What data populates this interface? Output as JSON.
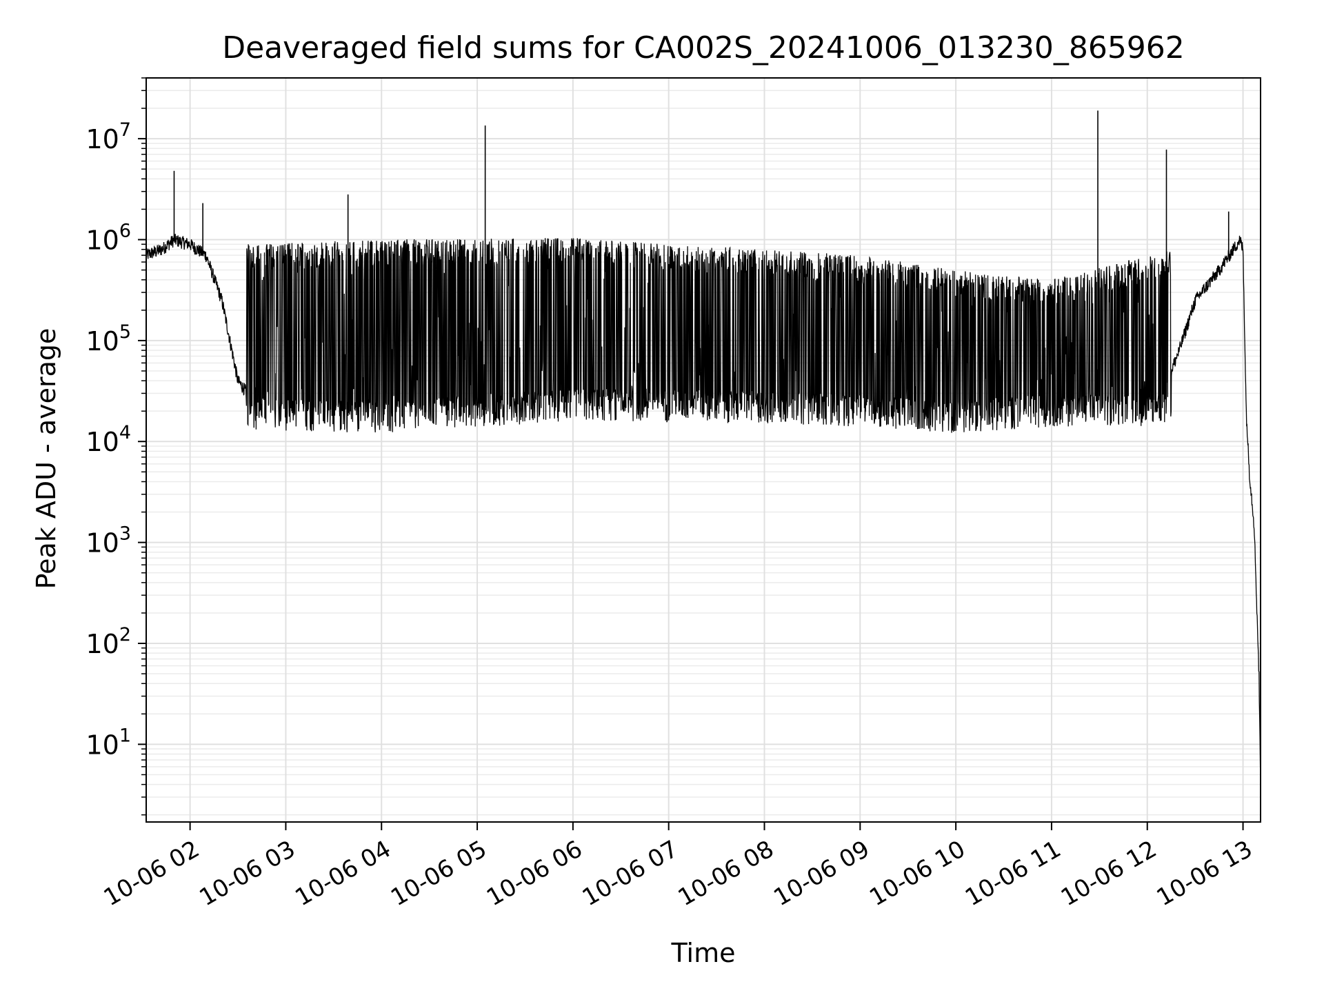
{
  "chart_data": {
    "type": "line",
    "title": "Deaveraged field sums for CA002S_20241006_013230_865962",
    "xlabel": "Time",
    "ylabel": "Peak ADU - average",
    "yscale": "log",
    "xlim": [
      "2024-10-06 01:32:30",
      "2024-10-06 13:11:00"
    ],
    "ylim": [
      1.7,
      40000000
    ],
    "grid": "major and minor, light gray",
    "line_color": "#000000",
    "x_ticks": [
      {
        "value": "2024-10-06 02:00",
        "label": "10-06 02"
      },
      {
        "value": "2024-10-06 03:00",
        "label": "10-06 03"
      },
      {
        "value": "2024-10-06 04:00",
        "label": "10-06 04"
      },
      {
        "value": "2024-10-06 05:00",
        "label": "10-06 05"
      },
      {
        "value": "2024-10-06 06:00",
        "label": "10-06 06"
      },
      {
        "value": "2024-10-06 07:00",
        "label": "10-06 07"
      },
      {
        "value": "2024-10-06 08:00",
        "label": "10-06 08"
      },
      {
        "value": "2024-10-06 09:00",
        "label": "10-06 09"
      },
      {
        "value": "2024-10-06 10:00",
        "label": "10-06 10"
      },
      {
        "value": "2024-10-06 11:00",
        "label": "10-06 11"
      },
      {
        "value": "2024-10-06 12:00",
        "label": "10-06 12"
      },
      {
        "value": "2024-10-06 13:00",
        "label": "10-06 13"
      }
    ],
    "y_ticks": [
      {
        "value": 10,
        "base": "10",
        "exp": "1"
      },
      {
        "value": 100,
        "base": "10",
        "exp": "2"
      },
      {
        "value": 1000,
        "base": "10",
        "exp": "3"
      },
      {
        "value": 10000,
        "base": "10",
        "exp": "4"
      },
      {
        "value": 100000,
        "base": "10",
        "exp": "5"
      },
      {
        "value": 1000000,
        "base": "10",
        "exp": "6"
      },
      {
        "value": 10000000,
        "base": "10",
        "exp": "7"
      }
    ],
    "series": [
      {
        "baseline": [
          [
            "2024-10-06 01:32",
            700000
          ],
          [
            "2024-10-06 01:42",
            800000
          ],
          [
            "2024-10-06 01:50",
            1000000
          ],
          [
            "2024-10-06 02:00",
            900000
          ],
          [
            "2024-10-06 02:10",
            700000
          ],
          [
            "2024-10-06 02:20",
            250000
          ],
          [
            "2024-10-06 02:30",
            40000
          ],
          [
            "2024-10-06 02:40",
            25000
          ],
          [
            "2024-10-06 02:50",
            20000
          ],
          [
            "2024-10-06 03:00",
            18000
          ],
          [
            "2024-10-06 04:00",
            18000
          ],
          [
            "2024-10-06 05:00",
            20000
          ],
          [
            "2024-10-06 06:00",
            25000
          ],
          [
            "2024-10-06 07:00",
            25000
          ],
          [
            "2024-10-06 08:00",
            20000
          ],
          [
            "2024-10-06 09:00",
            20000
          ],
          [
            "2024-10-06 10:00",
            22000
          ],
          [
            "2024-10-06 10:30",
            30000
          ],
          [
            "2024-10-06 11:00",
            28000
          ],
          [
            "2024-10-06 11:30",
            25000
          ],
          [
            "2024-10-06 12:05",
            20000
          ],
          [
            "2024-10-06 12:20",
            80000
          ],
          [
            "2024-10-06 12:30",
            250000
          ],
          [
            "2024-10-06 12:45",
            500000
          ],
          [
            "2024-10-06 12:58",
            1000000
          ],
          [
            "2024-10-06 13:00",
            800000
          ],
          [
            "2024-10-06 13:02",
            20000
          ],
          [
            "2024-10-06 13:04",
            5000
          ],
          [
            "2024-10-06 13:07",
            1500
          ],
          [
            "2024-10-06 13:10",
            50
          ],
          [
            "2024-10-06 13:11",
            4
          ]
        ],
        "spike_band": {
          "start": "2024-10-06 02:35",
          "end": "2024-10-06 12:15",
          "upper": [
            [
              "2024-10-06 02:35",
              900000
            ],
            [
              "2024-10-06 04:00",
              1000000
            ],
            [
              "2024-10-06 06:00",
              1050000
            ],
            [
              "2024-10-06 07:00",
              900000
            ],
            [
              "2024-10-06 08:00",
              800000
            ],
            [
              "2024-10-06 09:00",
              700000
            ],
            [
              "2024-10-06 10:00",
              500000
            ],
            [
              "2024-10-06 11:00",
              400000
            ],
            [
              "2024-10-06 12:15",
              800000
            ]
          ],
          "lower": [
            [
              "2024-10-06 02:35",
              13000
            ],
            [
              "2024-10-06 04:00",
              12000
            ],
            [
              "2024-10-06 06:00",
              16000
            ],
            [
              "2024-10-06 08:00",
              15000
            ],
            [
              "2024-10-06 09:00",
              14000
            ],
            [
              "2024-10-06 10:00",
              12000
            ],
            [
              "2024-10-06 11:00",
              14000
            ],
            [
              "2024-10-06 12:15",
              14000
            ]
          ]
        },
        "peaks": [
          [
            "2024-10-06 01:50",
            4800000
          ],
          [
            "2024-10-06 02:08",
            2300000
          ],
          [
            "2024-10-06 03:39",
            2800000
          ],
          [
            "2024-10-06 05:05",
            13500000
          ],
          [
            "2024-10-06 11:29",
            19000000
          ],
          [
            "2024-10-06 12:12",
            7800000
          ],
          [
            "2024-10-06 12:51",
            1900000
          ]
        ]
      }
    ]
  }
}
